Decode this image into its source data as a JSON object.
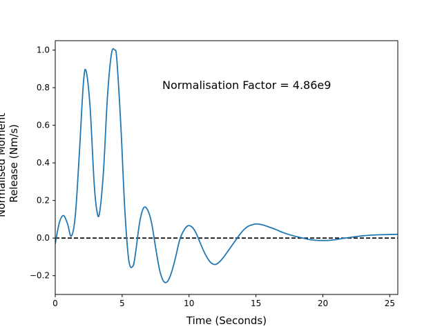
{
  "chart_data": {
    "type": "line",
    "title": "",
    "xlabel": "Time (Seconds)",
    "ylabel_lines": [
      "Normalised Moment",
      "Release (Nm/s)"
    ],
    "annotation": "Normalisation Factor = 4.86e9",
    "xlim": [
      0,
      25.6
    ],
    "ylim": [
      -0.3,
      1.05
    ],
    "xticks": [
      0,
      5,
      10,
      15,
      20,
      25
    ],
    "yticks": [
      -0.2,
      0.0,
      0.2,
      0.4,
      0.6,
      0.8,
      1.0
    ],
    "xtick_labels": [
      "0",
      "5",
      "10",
      "15",
      "20",
      "25"
    ],
    "ytick_labels": [
      "−0.2",
      "0.0",
      "0.2",
      "0.4",
      "0.6",
      "0.8",
      "1.0"
    ],
    "grid": false,
    "reference_line": {
      "y": 0,
      "style": "dashed",
      "color": "#000000"
    },
    "series": [
      {
        "color": "#1f77b4",
        "x": [
          0,
          0.3,
          0.6,
          0.9,
          1.2,
          1.5,
          1.8,
          2.1,
          2.3,
          2.6,
          2.9,
          3.1,
          3.3,
          3.6,
          3.9,
          4.2,
          4.45,
          4.6,
          4.9,
          5.2,
          5.5,
          5.8,
          6.0,
          6.3,
          6.6,
          6.9,
          7.2,
          7.5,
          7.8,
          8.1,
          8.4,
          8.7,
          9.0,
          9.3,
          9.6,
          9.9,
          10.2,
          10.5,
          10.8,
          11.1,
          11.4,
          11.7,
          12.0,
          12.3,
          12.6,
          12.9,
          13.2,
          13.5,
          13.8,
          14.1,
          14.4,
          14.7,
          15.0,
          15.5,
          16.0,
          16.5,
          17.0,
          17.5,
          18.0,
          18.5,
          19.0,
          19.5,
          20.0,
          20.5,
          21.0,
          21.5,
          22.0,
          22.5,
          23.0,
          23.5,
          24.0,
          24.5,
          25.0,
          25.6
        ],
        "y": [
          -0.03,
          0.08,
          0.12,
          0.08,
          0.01,
          0.12,
          0.45,
          0.82,
          0.89,
          0.7,
          0.3,
          0.15,
          0.13,
          0.35,
          0.75,
          0.98,
          1.0,
          0.95,
          0.6,
          0.15,
          -0.12,
          -0.15,
          -0.08,
          0.08,
          0.16,
          0.15,
          0.08,
          -0.05,
          -0.17,
          -0.23,
          -0.23,
          -0.18,
          -0.1,
          -0.01,
          0.04,
          0.065,
          0.06,
          0.03,
          -0.02,
          -0.07,
          -0.11,
          -0.135,
          -0.14,
          -0.125,
          -0.1,
          -0.07,
          -0.04,
          -0.01,
          0.02,
          0.045,
          0.062,
          0.07,
          0.075,
          0.07,
          0.058,
          0.045,
          0.03,
          0.018,
          0.008,
          0.0,
          -0.008,
          -0.012,
          -0.013,
          -0.012,
          -0.008,
          -0.002,
          0.003,
          0.008,
          0.012,
          0.015,
          0.017,
          0.018,
          0.019,
          0.02
        ]
      }
    ]
  }
}
